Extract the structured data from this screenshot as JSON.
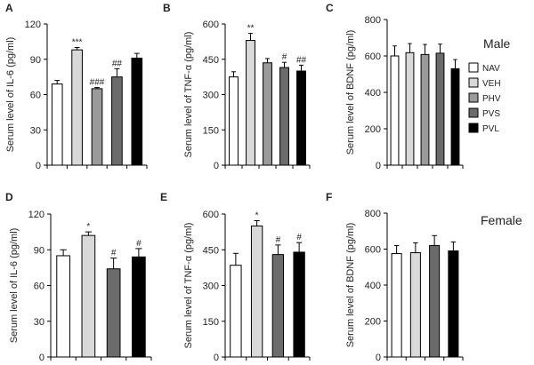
{
  "legend": {
    "items": [
      {
        "label": "NAV",
        "color": "#ffffff"
      },
      {
        "label": "VEH",
        "color": "#d9d9d9"
      },
      {
        "label": "PHV",
        "color": "#9a9a9a"
      },
      {
        "label": "PVS",
        "color": "#6b6b6b"
      },
      {
        "label": "PVL",
        "color": "#000000"
      }
    ]
  },
  "groups": {
    "male": "Male",
    "female": "Female"
  },
  "chart_data": [
    {
      "panel": "A",
      "type": "bar",
      "ylabel": "Serum level of IL-6 (pg/ml)",
      "ylim": [
        0,
        120
      ],
      "yticks": [
        0,
        30,
        60,
        90,
        120
      ],
      "categories": [
        "NAV",
        "VEH",
        "PHV",
        "PVS",
        "PVL"
      ],
      "values": [
        69,
        98,
        65,
        75,
        91
      ],
      "errors": [
        3,
        2,
        1,
        7,
        4
      ],
      "annotations": [
        "",
        "***",
        "###",
        "##",
        ""
      ]
    },
    {
      "panel": "B",
      "type": "bar",
      "ylabel": "Serum level of TNF-α (pg/ml)",
      "ylim": [
        0,
        600
      ],
      "yticks": [
        0,
        150,
        300,
        450,
        600
      ],
      "categories": [
        "NAV",
        "VEH",
        "PHV",
        "PVS",
        "PVL"
      ],
      "values": [
        375,
        530,
        435,
        415,
        400
      ],
      "errors": [
        22,
        30,
        18,
        22,
        25
      ],
      "annotations": [
        "",
        "**",
        "",
        "#",
        "##"
      ]
    },
    {
      "panel": "C",
      "type": "bar",
      "ylabel": "Serum level of BDNF (pg/ml)",
      "ylim": [
        0,
        800
      ],
      "yticks": [
        0,
        200,
        400,
        600,
        800
      ],
      "categories": [
        "NAV",
        "VEH",
        "PHV",
        "PVS",
        "PVL"
      ],
      "values": [
        600,
        618,
        608,
        615,
        530
      ],
      "errors": [
        55,
        50,
        55,
        50,
        50
      ],
      "annotations": [
        "",
        "",
        "",
        "",
        ""
      ]
    },
    {
      "panel": "D",
      "type": "bar",
      "ylabel": "Serum level of IL-6 (pg/ml)",
      "ylim": [
        0,
        120
      ],
      "yticks": [
        0,
        30,
        60,
        90,
        120
      ],
      "categories": [
        "NAV",
        "VEH",
        "PVS",
        "PVL"
      ],
      "values": [
        85,
        102,
        74,
        84
      ],
      "errors": [
        5,
        3,
        9,
        7
      ],
      "annotations": [
        "",
        "*",
        "#",
        "#"
      ]
    },
    {
      "panel": "E",
      "type": "bar",
      "ylabel": "Serum level of TNF-α (pg/ml)",
      "ylim": [
        0,
        600
      ],
      "yticks": [
        0,
        150,
        300,
        450,
        600
      ],
      "categories": [
        "NAV",
        "VEH",
        "PVS",
        "PVL"
      ],
      "values": [
        385,
        550,
        430,
        440
      ],
      "errors": [
        50,
        22,
        40,
        40
      ],
      "annotations": [
        "",
        "*",
        "#",
        "#"
      ]
    },
    {
      "panel": "F",
      "type": "bar",
      "ylabel": "Serum level of BDNF (pg/ml)",
      "ylim": [
        0,
        800
      ],
      "yticks": [
        0,
        200,
        400,
        600,
        800
      ],
      "categories": [
        "NAV",
        "VEH",
        "PVS",
        "PVL"
      ],
      "values": [
        575,
        580,
        620,
        590
      ],
      "errors": [
        45,
        55,
        55,
        50
      ],
      "annotations": [
        "",
        "",
        "",
        ""
      ]
    }
  ]
}
